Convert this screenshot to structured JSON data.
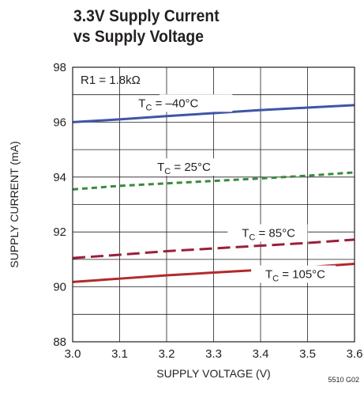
{
  "chart_data": {
    "type": "line",
    "title_line1": "3.3V Supply Current",
    "title_line2": "vs Supply Voltage",
    "xlabel": "SUPPLY VOLTAGE (V)",
    "ylabel": "SUPPLY CURRENT (mA)",
    "xlim": [
      3.0,
      3.6
    ],
    "ylim": [
      88,
      98
    ],
    "x_ticks": [
      "3.0",
      "3.1",
      "3.2",
      "3.3",
      "3.4",
      "3.5",
      "3.6"
    ],
    "y_ticks": [
      "88",
      "90",
      "92",
      "94",
      "96",
      "98"
    ],
    "grid": true,
    "annotation": "R1 = 1.8kΩ",
    "figure_id": "5510 G02",
    "series": [
      {
        "label_main": "T",
        "label_sub": "C",
        "label_rest": " = –40°C",
        "color": "#3f55a5",
        "style": "solid",
        "x": [
          3.0,
          3.1,
          3.2,
          3.3,
          3.4,
          3.5,
          3.6
        ],
        "values": [
          96.0,
          96.1,
          96.22,
          96.33,
          96.44,
          96.53,
          96.62
        ]
      },
      {
        "label_main": "T",
        "label_sub": "C",
        "label_rest": " = 25°C",
        "color": "#3a8a3f",
        "style": "dashed-short",
        "x": [
          3.0,
          3.1,
          3.2,
          3.3,
          3.4,
          3.5,
          3.6
        ],
        "values": [
          93.55,
          93.68,
          93.77,
          93.86,
          93.95,
          94.05,
          94.17
        ]
      },
      {
        "label_main": "T",
        "label_sub": "C",
        "label_rest": " = 85°C",
        "color": "#9a1f3b",
        "style": "dashed-long",
        "x": [
          3.0,
          3.1,
          3.2,
          3.3,
          3.4,
          3.5,
          3.6
        ],
        "values": [
          91.05,
          91.17,
          91.3,
          91.4,
          91.5,
          91.6,
          91.72
        ]
      },
      {
        "label_main": "T",
        "label_sub": "C",
        "label_rest": " = 105°C",
        "color": "#b22a2a",
        "style": "solid",
        "x": [
          3.0,
          3.1,
          3.2,
          3.3,
          3.4,
          3.5,
          3.6
        ],
        "values": [
          90.18,
          90.3,
          90.42,
          90.52,
          90.62,
          90.72,
          90.84
        ]
      }
    ]
  }
}
